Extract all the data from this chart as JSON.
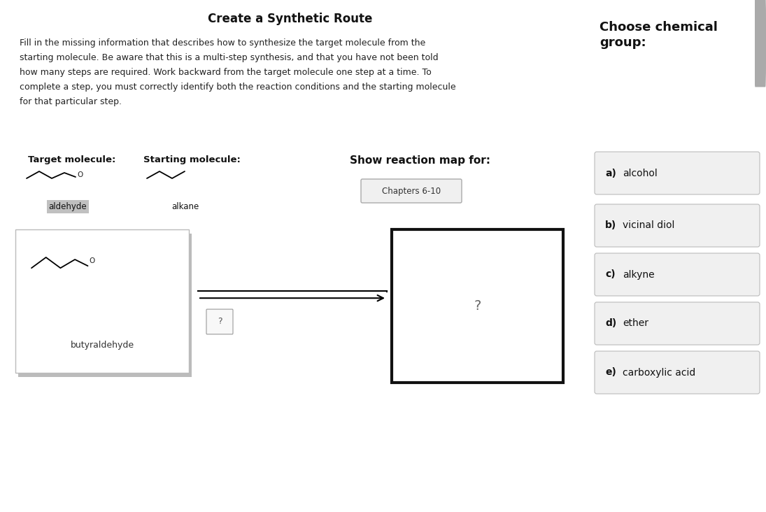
{
  "title": "Create a Synthetic Route",
  "desc_lines": [
    "Fill in the missing information that describes how to synthesize the target molecule from the",
    "starting molecule. Be aware that this is a multi-step synthesis, and that you have not been told",
    "how many steps are required. Work backward from the target molecule one step at a time. To",
    "complete a step, you must correctly identify both the reaction conditions and the starting molecule",
    "for that particular step."
  ],
  "target_label": "Target molecule:",
  "starting_label": "Starting molecule:",
  "show_label": "Show reaction map for:",
  "chapters_btn": "Chapters 6-10",
  "aldehyde_label": "aldehyde",
  "alkane_label": "alkane",
  "butyraldehyde_label": "butyraldehyde",
  "question_mark": "?",
  "choose_group_title": "Choose chemical\ngroup:",
  "choices": [
    "a) alcohol",
    "b) vicinal diol",
    "c) alkyne",
    "d) ether",
    "e) carboxylic acid"
  ],
  "bg_color_top": "#bad3e0",
  "scrollbar_color": "#c8c8c8",
  "fig_width": 10.95,
  "fig_height": 7.32
}
